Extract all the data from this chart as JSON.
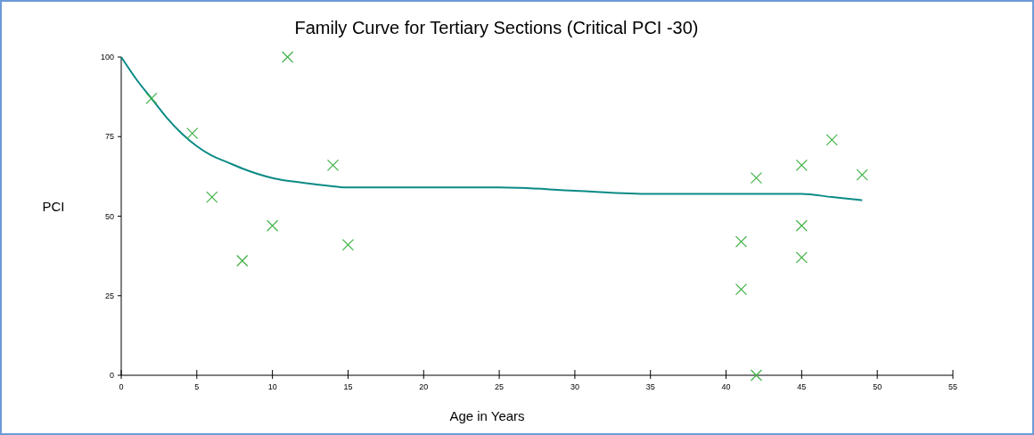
{
  "chart_data": {
    "type": "scatter",
    "title": "Family Curve for Tertiary Sections (Critical PCI -30)",
    "xlabel": "Age in Years",
    "ylabel": "PCI",
    "xlim": [
      0,
      55
    ],
    "xticks": [
      0,
      5,
      10,
      15,
      20,
      25,
      30,
      35,
      40,
      45,
      50,
      55
    ],
    "ylim": [
      0,
      100
    ],
    "yticks": [
      0,
      25,
      50,
      75,
      100
    ],
    "grid": false,
    "series": [
      {
        "color": "#3cb043",
        "marker": "cross",
        "x": [
          2,
          4.7,
          6,
          8,
          10,
          11,
          14,
          15,
          41,
          41,
          42,
          42,
          45,
          45,
          45,
          47,
          49
        ],
        "values": [
          87,
          76,
          56,
          36,
          47,
          100,
          66,
          41,
          42,
          27,
          62,
          0,
          66,
          47,
          37,
          74,
          63
        ]
      },
      {
        "type": "line",
        "color": "#0b8b86",
        "marker": "none",
        "line_style": "solid",
        "x": [
          0,
          1,
          2,
          3,
          4,
          5,
          6,
          7,
          8,
          10,
          12,
          14,
          15,
          20,
          25,
          30,
          35,
          40,
          45,
          47,
          49
        ],
        "values": [
          100,
          93,
          87,
          81,
          76,
          72,
          69,
          67,
          65,
          62,
          60.5,
          59.4,
          59,
          59,
          59,
          58,
          57,
          57,
          57,
          56,
          55
        ]
      }
    ]
  }
}
